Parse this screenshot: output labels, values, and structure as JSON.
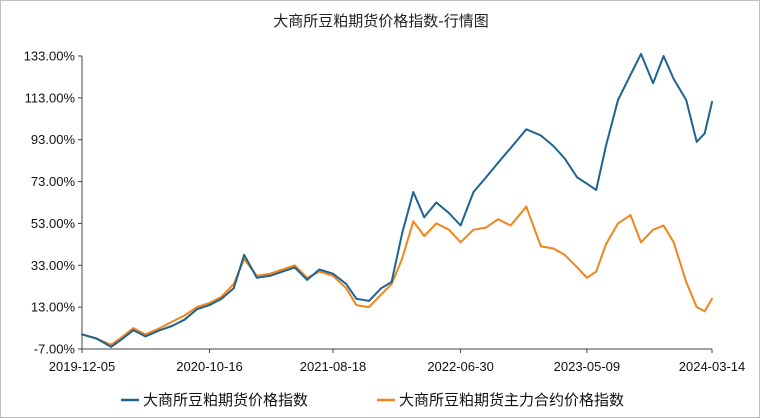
{
  "chart_data": {
    "type": "line",
    "title": "大商所豆粕期货价格指数-行情图",
    "xlabel": "",
    "ylabel": "",
    "ylim": [
      -7,
      133
    ],
    "yticks": [
      133,
      113,
      93,
      73,
      53,
      33,
      13,
      -7
    ],
    "ytick_labels": [
      "133.00%",
      "113.00%",
      "93.00%",
      "73.00%",
      "53.00%",
      "33.00%",
      "13.00%",
      "-7.00%"
    ],
    "xlim": [
      "2019-12-05",
      "2024-03-14"
    ],
    "xticks": [
      "2019-12-05",
      "2020-10-16",
      "2021-08-18",
      "2022-06-30",
      "2023-05-09",
      "2024-03-14"
    ],
    "grid": false,
    "legend_position": "bottom",
    "series": [
      {
        "name": "大商所豆粕期货价格指数",
        "color": "#1f6391",
        "points": [
          [
            "2019-12-05",
            0
          ],
          [
            "2020-01-10",
            -2
          ],
          [
            "2020-02-15",
            -6
          ],
          [
            "2020-03-15",
            -2
          ],
          [
            "2020-04-10",
            2
          ],
          [
            "2020-05-10",
            -1
          ],
          [
            "2020-06-15",
            2
          ],
          [
            "2020-07-15",
            4
          ],
          [
            "2020-08-15",
            7
          ],
          [
            "2020-09-15",
            12
          ],
          [
            "2020-10-16",
            14
          ],
          [
            "2020-11-15",
            17
          ],
          [
            "2020-12-15",
            22
          ],
          [
            "2021-01-10",
            38
          ],
          [
            "2021-02-10",
            27
          ],
          [
            "2021-03-15",
            28
          ],
          [
            "2021-04-15",
            30
          ],
          [
            "2021-05-15",
            32
          ],
          [
            "2021-06-15",
            26
          ],
          [
            "2021-07-15",
            31
          ],
          [
            "2021-08-18",
            29
          ],
          [
            "2021-09-20",
            24
          ],
          [
            "2021-10-15",
            17
          ],
          [
            "2021-11-15",
            16
          ],
          [
            "2021-12-15",
            22
          ],
          [
            "2022-01-10",
            25
          ],
          [
            "2022-02-05",
            48
          ],
          [
            "2022-03-05",
            68
          ],
          [
            "2022-04-01",
            56
          ],
          [
            "2022-05-01",
            63
          ],
          [
            "2022-06-01",
            58
          ],
          [
            "2022-06-30",
            52
          ],
          [
            "2022-08-01",
            68
          ],
          [
            "2022-09-01",
            75
          ],
          [
            "2022-10-01",
            82
          ],
          [
            "2022-11-01",
            89
          ],
          [
            "2022-12-10",
            98
          ],
          [
            "2023-01-15",
            95
          ],
          [
            "2023-02-15",
            90
          ],
          [
            "2023-03-15",
            84
          ],
          [
            "2023-04-15",
            75
          ],
          [
            "2023-05-09",
            72
          ],
          [
            "2023-06-01",
            69
          ],
          [
            "2023-06-25",
            90
          ],
          [
            "2023-07-25",
            112
          ],
          [
            "2023-08-25",
            124
          ],
          [
            "2023-09-20",
            134
          ],
          [
            "2023-10-20",
            120
          ],
          [
            "2023-11-15",
            133
          ],
          [
            "2023-12-10",
            122
          ],
          [
            "2024-01-10",
            112
          ],
          [
            "2024-02-05",
            92
          ],
          [
            "2024-02-25",
            96
          ],
          [
            "2024-03-14",
            111
          ]
        ]
      },
      {
        "name": "大商所豆粕期货主力合约价格指数",
        "color": "#f0861b",
        "points": [
          [
            "2019-12-05",
            0
          ],
          [
            "2020-01-10",
            -2
          ],
          [
            "2020-02-15",
            -5
          ],
          [
            "2020-03-15",
            -1
          ],
          [
            "2020-04-10",
            3
          ],
          [
            "2020-05-10",
            0
          ],
          [
            "2020-06-15",
            3
          ],
          [
            "2020-07-15",
            6
          ],
          [
            "2020-08-15",
            9
          ],
          [
            "2020-09-15",
            13
          ],
          [
            "2020-10-16",
            15
          ],
          [
            "2020-11-15",
            18
          ],
          [
            "2020-12-15",
            24
          ],
          [
            "2021-01-10",
            36
          ],
          [
            "2021-02-10",
            28
          ],
          [
            "2021-03-15",
            29
          ],
          [
            "2021-04-15",
            31
          ],
          [
            "2021-05-15",
            33
          ],
          [
            "2021-06-15",
            27
          ],
          [
            "2021-07-15",
            30
          ],
          [
            "2021-08-18",
            28
          ],
          [
            "2021-09-20",
            22
          ],
          [
            "2021-10-15",
            14
          ],
          [
            "2021-11-15",
            13
          ],
          [
            "2021-12-15",
            19
          ],
          [
            "2022-01-10",
            24
          ],
          [
            "2022-02-05",
            36
          ],
          [
            "2022-03-05",
            54
          ],
          [
            "2022-04-01",
            47
          ],
          [
            "2022-05-01",
            53
          ],
          [
            "2022-06-01",
            50
          ],
          [
            "2022-06-30",
            44
          ],
          [
            "2022-08-01",
            50
          ],
          [
            "2022-09-01",
            51
          ],
          [
            "2022-10-01",
            55
          ],
          [
            "2022-11-01",
            52
          ],
          [
            "2022-12-10",
            61
          ],
          [
            "2023-01-15",
            42
          ],
          [
            "2023-02-15",
            41
          ],
          [
            "2023-03-15",
            38
          ],
          [
            "2023-04-15",
            32
          ],
          [
            "2023-05-09",
            27
          ],
          [
            "2023-06-01",
            30
          ],
          [
            "2023-06-25",
            43
          ],
          [
            "2023-07-25",
            53
          ],
          [
            "2023-08-25",
            57
          ],
          [
            "2023-09-20",
            44
          ],
          [
            "2023-10-20",
            50
          ],
          [
            "2023-11-15",
            52
          ],
          [
            "2023-12-10",
            44
          ],
          [
            "2024-01-10",
            25
          ],
          [
            "2024-02-05",
            13
          ],
          [
            "2024-02-25",
            11
          ],
          [
            "2024-03-14",
            17
          ]
        ]
      }
    ]
  }
}
